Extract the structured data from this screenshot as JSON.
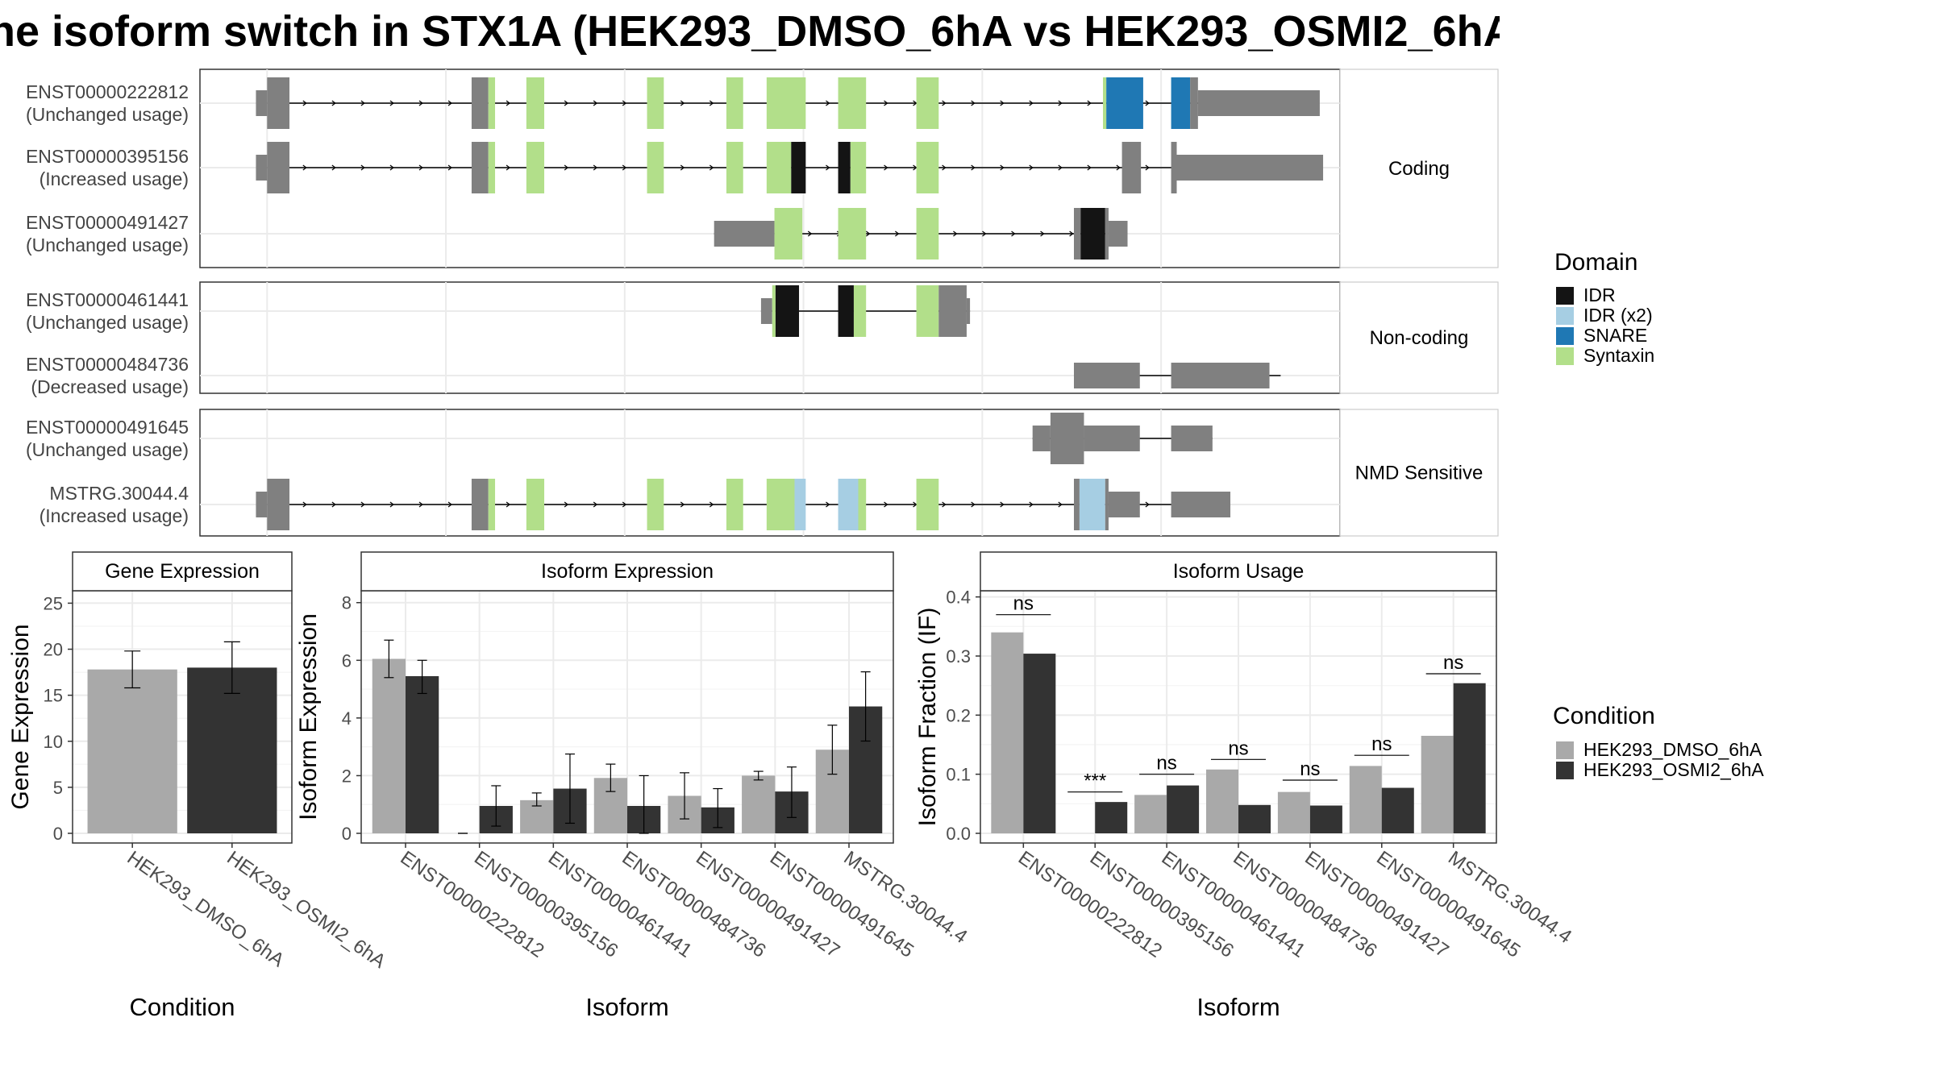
{
  "title": "he isoform switch in STX1A (HEK293_DMSO_6hA vs HEK293_OSMI2_6hA",
  "colors": {
    "IDR": "#141414",
    "IDR (x2)": "#a6cee3",
    "SNARE": "#1f78b4",
    "Syntaxin": "#b2df8a",
    "UTR": "#808080",
    "HEK293_DMSO_6hA": "#a9a9a9",
    "HEK293_OSMI2_6hA": "#333333"
  },
  "legend_domain": {
    "title": "Domain",
    "items": [
      "IDR",
      "IDR (x2)",
      "SNARE",
      "Syntaxin"
    ]
  },
  "legend_condition": {
    "title": "Condition",
    "items": [
      "HEK293_DMSO_6hA",
      "HEK293_OSMI2_6hA"
    ]
  },
  "structure": {
    "xrange": [
      0,
      100
    ],
    "grid": [
      5,
      21,
      37,
      53,
      69,
      85,
      101
    ],
    "panels": [
      {
        "label": "Coding",
        "isoforms": [
          {
            "id": "ENST00000222812",
            "usage": "(Unchanged usage)",
            "strand_arrows": true,
            "span": [
              5,
              93
            ],
            "features": [
              {
                "s": 5,
                "e": 7,
                "t": "UTR",
                "h": "tall"
              },
              {
                "s": 4,
                "e": 5,
                "t": "UTR",
                "h": "mid"
              },
              {
                "s": 23.3,
                "e": 24.8,
                "t": "UTR",
                "h": "tall"
              },
              {
                "s": 24.8,
                "e": 25.4,
                "t": "Syntaxin",
                "h": "tall"
              },
              {
                "s": 28.2,
                "e": 29.8,
                "t": "Syntaxin",
                "h": "tall"
              },
              {
                "s": 39.0,
                "e": 40.5,
                "t": "Syntaxin",
                "h": "tall"
              },
              {
                "s": 46.1,
                "e": 47.6,
                "t": "Syntaxin",
                "h": "tall"
              },
              {
                "s": 49.7,
                "e": 53.2,
                "t": "Syntaxin",
                "h": "tall"
              },
              {
                "s": 56.1,
                "e": 58.6,
                "t": "Syntaxin",
                "h": "tall"
              },
              {
                "s": 63.1,
                "e": 65.1,
                "t": "Syntaxin",
                "h": "tall"
              },
              {
                "s": 79.8,
                "e": 80.1,
                "t": "Syntaxin",
                "h": "tall"
              },
              {
                "s": 80.1,
                "e": 83.4,
                "t": "SNARE",
                "h": "tall"
              },
              {
                "s": 85.9,
                "e": 87.6,
                "t": "SNARE",
                "h": "tall"
              },
              {
                "s": 87.6,
                "e": 88.3,
                "t": "UTR",
                "h": "tall"
              },
              {
                "s": 88.3,
                "e": 99.2,
                "t": "UTR",
                "h": "mid"
              }
            ]
          },
          {
            "id": "ENST00000395156",
            "usage": "(Increased usage)",
            "strand_arrows": true,
            "span": [
              5,
              93
            ],
            "features": [
              {
                "s": 5,
                "e": 7,
                "t": "UTR",
                "h": "tall"
              },
              {
                "s": 4,
                "e": 5,
                "t": "UTR",
                "h": "mid"
              },
              {
                "s": 23.3,
                "e": 24.8,
                "t": "UTR",
                "h": "tall"
              },
              {
                "s": 24.8,
                "e": 25.4,
                "t": "Syntaxin",
                "h": "tall"
              },
              {
                "s": 28.2,
                "e": 29.8,
                "t": "Syntaxin",
                "h": "tall"
              },
              {
                "s": 39.0,
                "e": 40.5,
                "t": "Syntaxin",
                "h": "tall"
              },
              {
                "s": 46.1,
                "e": 47.6,
                "t": "Syntaxin",
                "h": "tall"
              },
              {
                "s": 49.7,
                "e": 51.9,
                "t": "Syntaxin",
                "h": "tall"
              },
              {
                "s": 51.9,
                "e": 53.2,
                "t": "IDR",
                "h": "tall"
              },
              {
                "s": 56.1,
                "e": 57.2,
                "t": "IDR",
                "h": "tall"
              },
              {
                "s": 57.2,
                "e": 58.6,
                "t": "Syntaxin",
                "h": "tall"
              },
              {
                "s": 63.1,
                "e": 65.1,
                "t": "Syntaxin",
                "h": "tall"
              },
              {
                "s": 81.5,
                "e": 83.2,
                "t": "UTR",
                "h": "tall"
              },
              {
                "s": 85.9,
                "e": 86.4,
                "t": "UTR",
                "h": "tall"
              },
              {
                "s": 86.4,
                "e": 99.5,
                "t": "UTR",
                "h": "mid"
              }
            ]
          },
          {
            "id": "ENST00000491427",
            "usage": "(Unchanged usage)",
            "strand_arrows": true,
            "span": [
              45,
              81
            ],
            "features": [
              {
                "s": 45.0,
                "e": 50.4,
                "t": "UTR",
                "h": "mid"
              },
              {
                "s": 50.4,
                "e": 52.9,
                "t": "Syntaxin",
                "h": "tall"
              },
              {
                "s": 56.1,
                "e": 58.6,
                "t": "Syntaxin",
                "h": "tall"
              },
              {
                "s": 63.1,
                "e": 65.1,
                "t": "Syntaxin",
                "h": "tall"
              },
              {
                "s": 77.2,
                "e": 77.8,
                "t": "UTR",
                "h": "tall"
              },
              {
                "s": 77.8,
                "e": 80.0,
                "t": "IDR",
                "h": "tall"
              },
              {
                "s": 80.0,
                "e": 80.3,
                "t": "UTR",
                "h": "tall"
              },
              {
                "s": 80.3,
                "e": 82.0,
                "t": "UTR",
                "h": "mid"
              }
            ]
          }
        ]
      },
      {
        "label": "Non-coding",
        "isoforms": [
          {
            "id": "ENST00000461441",
            "usage": "(Unchanged usage)",
            "strand_arrows": false,
            "span": [
              49.2,
              67.9
            ],
            "features": [
              {
                "s": 49.2,
                "e": 50.2,
                "t": "UTR",
                "h": "mid"
              },
              {
                "s": 50.2,
                "e": 50.5,
                "t": "Syntaxin",
                "h": "tall"
              },
              {
                "s": 50.5,
                "e": 52.6,
                "t": "IDR",
                "h": "tall"
              },
              {
                "s": 56.1,
                "e": 57.5,
                "t": "IDR",
                "h": "tall"
              },
              {
                "s": 57.5,
                "e": 58.6,
                "t": "Syntaxin",
                "h": "tall"
              },
              {
                "s": 63.1,
                "e": 65.1,
                "t": "Syntaxin",
                "h": "tall"
              },
              {
                "s": 65.1,
                "e": 67.6,
                "t": "UTR",
                "h": "tall"
              },
              {
                "s": 67.6,
                "e": 67.9,
                "t": "UTR",
                "h": "mid"
              }
            ]
          },
          {
            "id": "ENST00000484736",
            "usage": "(Decreased usage)",
            "strand_arrows": false,
            "span": [
              77.2,
              95.7
            ],
            "features": [
              {
                "s": 77.2,
                "e": 83.1,
                "t": "UTR",
                "h": "mid"
              },
              {
                "s": 85.9,
                "e": 94.7,
                "t": "UTR",
                "h": "mid"
              }
            ]
          }
        ]
      },
      {
        "label": "NMD Sensitive",
        "isoforms": [
          {
            "id": "ENST00000491645",
            "usage": "(Unchanged usage)",
            "strand_arrows": false,
            "span": [
              73.5,
              89.6
            ],
            "features": [
              {
                "s": 73.5,
                "e": 75.1,
                "t": "UTR",
                "h": "mid"
              },
              {
                "s": 75.1,
                "e": 78.1,
                "t": "UTR",
                "h": "tall"
              },
              {
                "s": 78.1,
                "e": 83.1,
                "t": "UTR",
                "h": "mid"
              },
              {
                "s": 85.9,
                "e": 89.6,
                "t": "UTR",
                "h": "mid"
              }
            ]
          },
          {
            "id": "MSTRG.30044.4",
            "usage": "(Increased usage)",
            "strand_arrows": true,
            "span": [
              5,
              91
            ],
            "features": [
              {
                "s": 5,
                "e": 7,
                "t": "UTR",
                "h": "tall"
              },
              {
                "s": 4,
                "e": 5,
                "t": "UTR",
                "h": "mid"
              },
              {
                "s": 23.3,
                "e": 24.8,
                "t": "UTR",
                "h": "tall"
              },
              {
                "s": 24.8,
                "e": 25.4,
                "t": "Syntaxin",
                "h": "tall"
              },
              {
                "s": 28.2,
                "e": 29.8,
                "t": "Syntaxin",
                "h": "tall"
              },
              {
                "s": 39.0,
                "e": 40.5,
                "t": "Syntaxin",
                "h": "tall"
              },
              {
                "s": 46.1,
                "e": 47.6,
                "t": "Syntaxin",
                "h": "tall"
              },
              {
                "s": 49.7,
                "e": 52.2,
                "t": "Syntaxin",
                "h": "tall"
              },
              {
                "s": 52.2,
                "e": 53.2,
                "t": "IDR (x2)",
                "h": "tall"
              },
              {
                "s": 56.1,
                "e": 57.9,
                "t": "IDR (x2)",
                "h": "tall"
              },
              {
                "s": 57.9,
                "e": 58.6,
                "t": "Syntaxin",
                "h": "tall"
              },
              {
                "s": 63.1,
                "e": 65.1,
                "t": "Syntaxin",
                "h": "tall"
              },
              {
                "s": 77.2,
                "e": 77.7,
                "t": "UTR",
                "h": "tall"
              },
              {
                "s": 77.7,
                "e": 80.0,
                "t": "IDR (x2)",
                "h": "tall"
              },
              {
                "s": 80.0,
                "e": 80.3,
                "t": "UTR",
                "h": "tall"
              },
              {
                "s": 80.3,
                "e": 83.1,
                "t": "UTR",
                "h": "mid"
              },
              {
                "s": 85.9,
                "e": 91.2,
                "t": "UTR",
                "h": "mid"
              }
            ]
          }
        ]
      }
    ]
  },
  "chart_data": [
    {
      "type": "bar",
      "title": "Gene Expression",
      "xlabel": "Condition",
      "ylabel": "Gene Expression",
      "ylim": [
        0,
        26
      ],
      "yticks": [
        0,
        5,
        10,
        15,
        20,
        25
      ],
      "categories": [
        "HEK293_DMSO_6hA",
        "HEK293_OSMI2_6hA"
      ],
      "values": [
        17.8,
        18.0
      ],
      "err_low": [
        15.8,
        15.2
      ],
      "err_high": [
        19.8,
        20.8
      ]
    },
    {
      "type": "bar",
      "title": "Isoform Expression",
      "xlabel": "Isoform",
      "ylabel": "Isoform Expression",
      "ylim": [
        0,
        8.3
      ],
      "yticks": [
        0,
        2,
        4,
        6,
        8
      ],
      "categories": [
        "ENST00000222812",
        "ENST00000395156",
        "ENST00000461441",
        "ENST00000484736",
        "ENST00000491427",
        "ENST00000491645",
        "MSTRG.30044.4"
      ],
      "series": [
        {
          "name": "HEK293_DMSO_6hA",
          "values": [
            6.05,
            0.0,
            1.15,
            1.92,
            1.3,
            2.0,
            2.9
          ],
          "err_low": [
            5.4,
            0.0,
            0.95,
            1.45,
            0.5,
            1.85,
            2.05
          ],
          "err_high": [
            6.7,
            0.0,
            1.4,
            2.4,
            2.1,
            2.15,
            3.75
          ]
        },
        {
          "name": "HEK293_OSMI2_6hA",
          "values": [
            5.45,
            0.95,
            1.55,
            0.95,
            0.9,
            1.45,
            4.4
          ],
          "err_low": [
            4.85,
            0.25,
            0.35,
            0.0,
            0.2,
            0.55,
            3.2
          ],
          "err_high": [
            6.0,
            1.65,
            2.75,
            2.0,
            1.55,
            2.3,
            5.6
          ]
        }
      ]
    },
    {
      "type": "bar",
      "title": "Isoform Usage",
      "xlabel": "Isoform",
      "ylabel": "Isoform Fraction (IF)",
      "ylim": [
        0,
        0.405
      ],
      "yticks": [
        0.0,
        0.1,
        0.2,
        0.3,
        0.4
      ],
      "ytick_labels": [
        "0.0",
        "0.1",
        "0.2",
        "0.3",
        "0.4"
      ],
      "categories": [
        "ENST00000222812",
        "ENST00000395156",
        "ENST00000461441",
        "ENST00000484736",
        "ENST00000491427",
        "ENST00000491645",
        "MSTRG.30044.4"
      ],
      "series": [
        {
          "name": "HEK293_DMSO_6hA",
          "values": [
            0.34,
            0.0,
            0.065,
            0.108,
            0.07,
            0.114,
            0.165
          ]
        },
        {
          "name": "HEK293_OSMI2_6hA",
          "values": [
            0.304,
            0.053,
            0.081,
            0.048,
            0.047,
            0.077,
            0.254
          ]
        }
      ],
      "significance": [
        "ns",
        "***",
        "ns",
        "ns",
        "ns",
        "ns",
        "ns"
      ],
      "significance_level": [
        0.37,
        0.07,
        0.1,
        0.125,
        0.09,
        0.132,
        0.27
      ]
    }
  ]
}
